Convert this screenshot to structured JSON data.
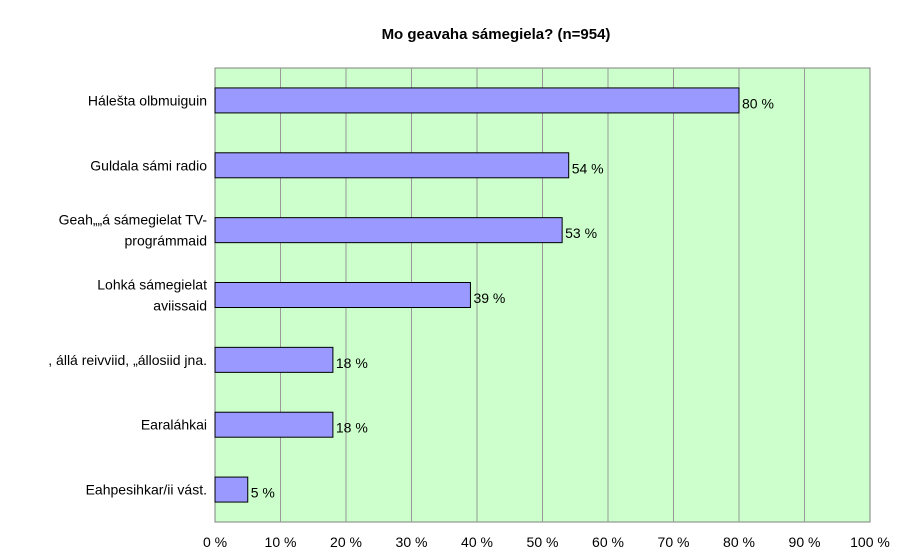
{
  "chart_data": {
    "type": "bar",
    "orientation": "horizontal",
    "title": "Mo geavaha sámegiela? (n=954)",
    "categories": [
      [
        "Hálešta olbmuiguin"
      ],
      [
        "Guldala sámi radio"
      ],
      [
        "Geah„„á sámegielat TV-",
        "prográmmaid"
      ],
      [
        "Lohká sámegielat",
        "aviissaid"
      ],
      [
        ",  állá reivviid, „állosiid jna."
      ],
      [
        "Earaláhkai"
      ],
      [
        "Eahpesihkar/ii vást."
      ]
    ],
    "values": [
      80,
      54,
      53,
      39,
      18,
      18,
      5
    ],
    "data_labels": [
      "80 %",
      "54 %",
      "53 %",
      "39 %",
      "18 %",
      "18 %",
      "5 %"
    ],
    "xlim": [
      0,
      100
    ],
    "xticks": [
      0,
      10,
      20,
      30,
      40,
      50,
      60,
      70,
      80,
      90,
      100
    ],
    "xtick_labels": [
      "0 %",
      "10 %",
      "20 %",
      "30 %",
      "40 %",
      "50 %",
      "60 %",
      "70 %",
      "80 %",
      "90 %",
      "100 %"
    ],
    "grid": true,
    "legend": "none",
    "colors": {
      "plot_background": "#ccffcc",
      "bar_fill": "#9999ff",
      "bar_stroke": "#000000",
      "gridline": "#999999"
    }
  }
}
